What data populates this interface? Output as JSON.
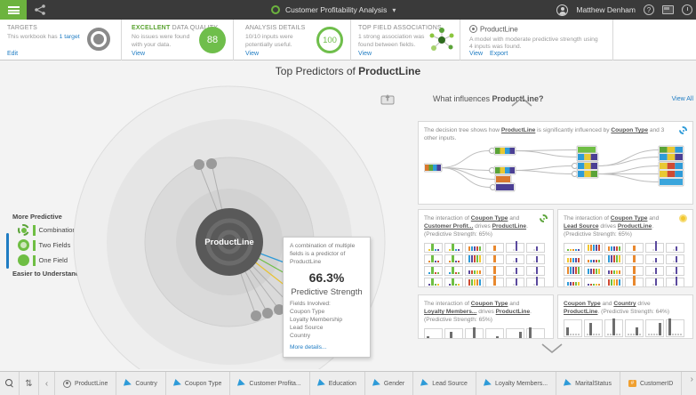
{
  "header": {
    "workbook_title": "Customer Profitability Analysis",
    "user_name": "Matthew Denham",
    "help_label": "?"
  },
  "summary": {
    "targets": {
      "title": "TARGETS",
      "body_prefix": "This workbook has ",
      "body_link": "1 target",
      "action": "Edit"
    },
    "quality": {
      "title_em": "EXCELLENT",
      "title_rest": " DATA QUALITY",
      "body": "No issues were found with your data.",
      "action": "View",
      "score": "88"
    },
    "analysis": {
      "title": "ANALYSIS DETAILS",
      "body": "10/10 inputs were potentially useful.",
      "action": "View",
      "score": "100"
    },
    "associations": {
      "title": "TOP FIELD ASSOCIATIONS",
      "body": "1 strong association was found between fields.",
      "action": "View"
    },
    "model": {
      "title": "ProductLine",
      "body": "A model with moderate predictive strength using 4 inputs was found.",
      "action1": "View",
      "action2": "Export"
    }
  },
  "main": {
    "title_prefix": "Top Predictors of ",
    "title_target": "ProductLine",
    "center_label": "ProductLine",
    "legend": {
      "top": "More Predictive",
      "items": [
        "Combination",
        "Two Fields",
        "One Field"
      ],
      "bottom": "Easier to Understand"
    },
    "tooltip": {
      "line1": "A combination of multiple fields is a predictor of ProductLine",
      "value": "66.3%",
      "value_label": "Predictive Strength",
      "fields_label": "Fields Involved:",
      "fields": [
        "Coupon Type",
        "Loyalty Membership",
        "Lead Source",
        "Country"
      ],
      "link": "More details..."
    }
  },
  "influences": {
    "title_prefix": "What influences ",
    "title_target": "ProductLine?",
    "view_all": "View All",
    "cards": [
      {
        "badge": "bg-combo-blue",
        "kind": "tree",
        "parts": [
          {
            "t": "The decision tree shows how ",
            "b": 0
          },
          {
            "t": "ProductLine",
            "b": 1
          },
          {
            "t": " is significantly influenced by ",
            "b": 0
          },
          {
            "t": "Coupon Type",
            "b": 1
          },
          {
            "t": " and 3 other inputs.",
            "b": 0
          }
        ]
      },
      {
        "badge": "bg-combo-green",
        "kind": "grid",
        "rows": 5,
        "boxh": 11,
        "colspec": [
          "green",
          "green",
          "multi",
          "orange",
          "purple",
          "purple"
        ],
        "parts": [
          {
            "t": "The interaction of ",
            "b": 0
          },
          {
            "t": "Coupon Type",
            "b": 1
          },
          {
            "t": " and ",
            "b": 0
          },
          {
            "t": "Customer Profit...",
            "b": 1
          },
          {
            "t": " drives ",
            "b": 0
          },
          {
            "t": "ProductLine",
            "b": 1
          },
          {
            "t": ". (Predictive Strength: 65%)",
            "b": 0
          }
        ]
      },
      {
        "badge": "bg-one-yellow",
        "kind": "grid",
        "rows": 5,
        "boxh": 11,
        "colspec": [
          "multi",
          "multi",
          "multi",
          "orange",
          "purple",
          "purple"
        ],
        "parts": [
          {
            "t": "The interaction of ",
            "b": 0
          },
          {
            "t": "Coupon Type",
            "b": 1
          },
          {
            "t": " and ",
            "b": 0
          },
          {
            "t": "Lead Source",
            "b": 1
          },
          {
            "t": " drives ",
            "b": 0
          },
          {
            "t": "ProductLine",
            "b": 1
          },
          {
            "t": ". (Predictive Strength: 65%)",
            "b": 0
          }
        ]
      },
      {
        "badge": null,
        "kind": "grid",
        "rows": 2,
        "boxh": 20,
        "colspec": [
          "gray",
          "gray",
          "gray",
          "gray",
          "gray",
          "gray"
        ],
        "parts": [
          {
            "t": "The interaction of ",
            "b": 0
          },
          {
            "t": "Coupon Type",
            "b": 1
          },
          {
            "t": " and ",
            "b": 0
          },
          {
            "t": "Loyalty Members...",
            "b": 1
          },
          {
            "t": " drives ",
            "b": 0
          },
          {
            "t": "ProductLine",
            "b": 1
          },
          {
            "t": ". (Predictive Strength: 65%)",
            "b": 0
          }
        ]
      },
      {
        "badge": null,
        "kind": "grid",
        "rows": 2,
        "boxh": 20,
        "colspec": [
          "gray",
          "gray",
          "gray",
          "gray",
          "gray",
          "gray"
        ],
        "parts": [
          {
            "t": "Coupon Type",
            "b": 1
          },
          {
            "t": " and ",
            "b": 0
          },
          {
            "t": "Country",
            "b": 1
          },
          {
            "t": " drive ",
            "b": 0
          },
          {
            "t": "ProductLine",
            "b": 1
          },
          {
            "t": ". (Predictive Strength: 64%)",
            "b": 0
          }
        ]
      }
    ]
  },
  "tabs": {
    "items": [
      {
        "icon": "target",
        "label": "ProductLine"
      },
      {
        "icon": "category",
        "label": "Country"
      },
      {
        "icon": "category",
        "label": "Coupon Type"
      },
      {
        "icon": "category",
        "label": "Customer Profita..."
      },
      {
        "icon": "category",
        "label": "Education"
      },
      {
        "icon": "category",
        "label": "Gender"
      },
      {
        "icon": "category",
        "label": "Lead Source"
      },
      {
        "icon": "category",
        "label": "Loyalty Members..."
      },
      {
        "icon": "category",
        "label": "MaritalStatus"
      },
      {
        "icon": "id",
        "label": "CustomerID"
      }
    ]
  },
  "colors": {
    "accent_green": "#6cb33e",
    "score_green": "#6fbe4b",
    "link_blue": "#1f7cc3",
    "dot_blue": "#2e9bd8",
    "dot_yellow": "#f2c72e",
    "dot_green": "#6fbe44",
    "header_bg": "#3a3a3a"
  }
}
